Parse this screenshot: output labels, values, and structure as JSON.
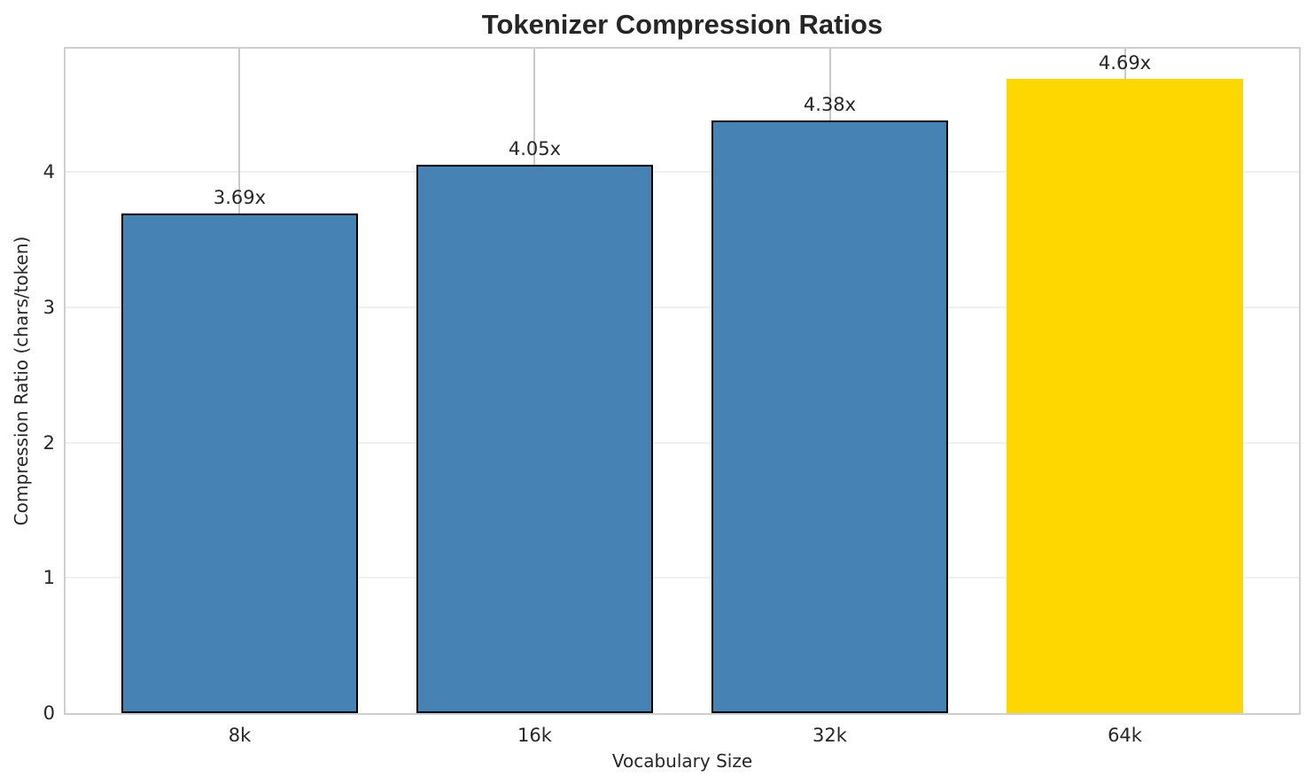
{
  "chart_data": {
    "type": "bar",
    "title": "Tokenizer Compression Ratios",
    "xlabel": "Vocabulary Size",
    "ylabel": "Compression Ratio (chars/token)",
    "categories": [
      "8k",
      "16k",
      "32k",
      "64k"
    ],
    "values": [
      3.69,
      4.05,
      4.38,
      4.69
    ],
    "bar_labels": [
      "3.69x",
      "4.05x",
      "4.38x",
      "4.69x"
    ],
    "bar_colors": [
      "#4682B4",
      "#4682B4",
      "#4682B4",
      "#FFD700"
    ],
    "bar_edge_colors": [
      "#000000",
      "#000000",
      "#000000",
      "none"
    ],
    "highlight_index": 3,
    "ytick_labels": [
      "0",
      "1",
      "2",
      "3",
      "4"
    ],
    "ytick_values": [
      0,
      1,
      2,
      3,
      4
    ],
    "ylim": [
      0,
      4.91
    ],
    "xlim": [
      -0.59,
      3.59
    ],
    "bar_width": 0.8,
    "grid": true,
    "legend": "none",
    "colors": {
      "grid_horizontal": "#f0f0f0",
      "grid_vertical": "#c9c9c9",
      "spine": "#cfcfcf",
      "text": "#262626",
      "background": "#ffffff"
    }
  }
}
